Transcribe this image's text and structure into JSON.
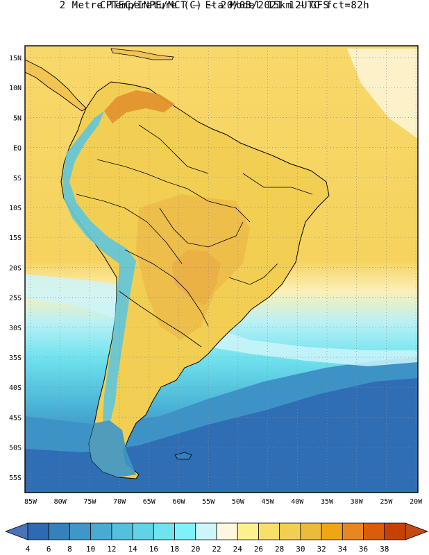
{
  "header": {
    "line1": "CPTEC/INPE/MCT –  Eta Model 15km – GFS",
    "line2": "2 Metre Temperature (C) – 20/03/2021 12UTC fct=82h"
  },
  "map": {
    "region": "South America",
    "lon_labels": [
      "85W",
      "80W",
      "75W",
      "70W",
      "65W",
      "60W",
      "55W",
      "50W",
      "45W",
      "40W",
      "35W",
      "30W",
      "25W",
      "20W"
    ],
    "lat_labels": [
      "15N",
      "10N",
      "5N",
      "EQ",
      "5S",
      "10S",
      "15S",
      "20S",
      "25S",
      "30S",
      "35S",
      "40S",
      "45S",
      "50S",
      "55S"
    ],
    "colors": {
      "land_warm": "#f2ce52",
      "land_hot": "#e9a23c",
      "ocean_warm": "#f8d86a",
      "ocean_cool": "#8eeaf0",
      "ocean_cold": "#2e69b3",
      "andes": "#5fc7dc",
      "border": "#000000",
      "grid": "#999999"
    }
  },
  "colorbar": {
    "tick_labels": [
      "4",
      "6",
      "8",
      "10",
      "12",
      "14",
      "16",
      "18",
      "20",
      "22",
      "24",
      "26",
      "28",
      "30",
      "32",
      "34",
      "36",
      "38"
    ],
    "colors": [
      "#2e69b3",
      "#3481be",
      "#3d97c8",
      "#47abd4",
      "#53c0dd",
      "#60d3e5",
      "#6ee5ee",
      "#7ff2f8",
      "#cdf5fa",
      "#fdf7e1",
      "#fbf18d",
      "#f8df6a",
      "#f2cf53",
      "#edbb3c",
      "#f0a418",
      "#e88722",
      "#db5c0c",
      "#c74105"
    ],
    "low_arrow_color": "#4a72b8",
    "high_arrow_color": "#c34a12"
  }
}
